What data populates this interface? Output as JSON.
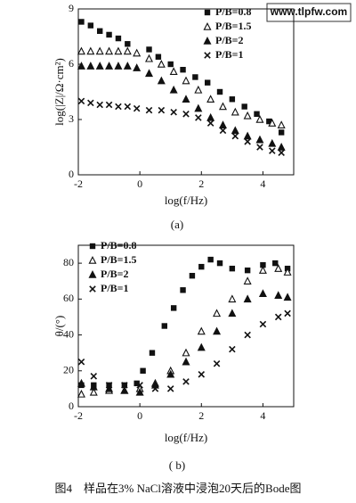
{
  "watermark": "www.tlpfw.com",
  "caption": "图4　样品在3% NaCl溶液中浸泡20天后的Bode图",
  "chart_data": [
    {
      "type": "scatter",
      "subcaption": "(a)",
      "x_label": "log(f/Hz)",
      "y_label": "log(|Z|/Ω·cm²)",
      "xlim": [
        -2,
        5
      ],
      "xticks": [
        -2,
        0,
        2,
        4
      ],
      "ylim": [
        0,
        9
      ],
      "yticks": [
        0,
        3,
        6,
        9
      ],
      "legend": "upper right",
      "series": [
        {
          "name": "P/B=0.8",
          "color": "#111111",
          "marker": "square",
          "x": [
            -1.9,
            -1.6,
            -1.3,
            -1.0,
            -0.7,
            -0.4,
            0.3,
            0.6,
            1.0,
            1.4,
            1.8,
            2.2,
            2.6,
            3.0,
            3.4,
            3.8,
            4.2,
            4.6
          ],
          "values": [
            8.3,
            8.1,
            7.8,
            7.6,
            7.4,
            7.1,
            6.8,
            6.4,
            6.0,
            5.7,
            5.3,
            5.0,
            4.5,
            4.1,
            3.7,
            3.3,
            2.9,
            2.3
          ]
        },
        {
          "name": "P/B=1.5",
          "color": "#111111",
          "marker": "triangle-open",
          "x": [
            -1.9,
            -1.6,
            -1.3,
            -1.0,
            -0.7,
            -0.4,
            -0.1,
            0.3,
            0.7,
            1.1,
            1.5,
            1.9,
            2.3,
            2.7,
            3.1,
            3.5,
            3.9,
            4.3,
            4.6
          ],
          "values": [
            6.7,
            6.7,
            6.7,
            6.7,
            6.7,
            6.7,
            6.6,
            6.3,
            6.0,
            5.6,
            5.1,
            4.6,
            4.1,
            3.7,
            3.4,
            3.2,
            3.0,
            2.8,
            2.7
          ]
        },
        {
          "name": "P/B=2",
          "color": "#111111",
          "marker": "triangle",
          "x": [
            -1.9,
            -1.6,
            -1.3,
            -1.0,
            -0.7,
            -0.4,
            -0.1,
            0.3,
            0.7,
            1.1,
            1.5,
            1.9,
            2.3,
            2.7,
            3.1,
            3.5,
            3.9,
            4.3,
            4.6
          ],
          "values": [
            5.9,
            5.9,
            5.9,
            5.9,
            5.9,
            5.9,
            5.8,
            5.5,
            5.1,
            4.6,
            4.1,
            3.6,
            3.1,
            2.7,
            2.4,
            2.1,
            1.9,
            1.7,
            1.5
          ]
        },
        {
          "name": "P/B=1",
          "color": "#111111",
          "marker": "cross",
          "x": [
            -1.9,
            -1.6,
            -1.3,
            -1.0,
            -0.7,
            -0.4,
            -0.1,
            0.3,
            0.7,
            1.1,
            1.5,
            1.9,
            2.3,
            2.7,
            3.1,
            3.5,
            3.9,
            4.3,
            4.6
          ],
          "values": [
            4.0,
            3.9,
            3.8,
            3.8,
            3.7,
            3.7,
            3.6,
            3.5,
            3.5,
            3.4,
            3.3,
            3.1,
            2.8,
            2.4,
            2.1,
            1.8,
            1.5,
            1.3,
            1.2
          ]
        }
      ]
    },
    {
      "type": "scatter",
      "subcaption": "( b)",
      "x_label": "log(f/Hz)",
      "y_label": "θ/(°)",
      "xlim": [
        -2,
        5
      ],
      "xticks": [
        -2,
        0,
        2,
        4
      ],
      "ylim": [
        0,
        90
      ],
      "yticks": [
        0,
        20,
        40,
        60,
        80
      ],
      "legend": "upper left",
      "series": [
        {
          "name": "P/B=0.8",
          "color": "#111111",
          "marker": "square",
          "x": [
            -1.9,
            -1.5,
            -1.0,
            -0.5,
            -0.1,
            0.1,
            0.4,
            0.8,
            1.1,
            1.4,
            1.7,
            2.0,
            2.3,
            2.6,
            3.0,
            3.5,
            4.0,
            4.4,
            4.8
          ],
          "values": [
            12,
            12,
            12,
            12,
            13,
            20,
            30,
            45,
            55,
            65,
            73,
            78,
            82,
            80,
            77,
            76,
            79,
            80,
            77
          ]
        },
        {
          "name": "P/B=1.5",
          "color": "#111111",
          "marker": "triangle-open",
          "x": [
            -1.9,
            -1.5,
            -1.0,
            -0.5,
            0.0,
            0.5,
            1.0,
            1.5,
            2.0,
            2.5,
            3.0,
            3.5,
            4.0,
            4.5,
            4.8
          ],
          "values": [
            7,
            8,
            9,
            9,
            10,
            13,
            20,
            30,
            42,
            52,
            60,
            70,
            76,
            77,
            75
          ]
        },
        {
          "name": "P/B=2",
          "color": "#111111",
          "marker": "triangle",
          "x": [
            -1.9,
            -1.5,
            -1.0,
            -0.5,
            0.0,
            0.5,
            1.0,
            1.5,
            2.0,
            2.5,
            3.0,
            3.5,
            4.0,
            4.5,
            4.8
          ],
          "values": [
            13,
            11,
            10,
            9,
            8,
            12,
            18,
            25,
            33,
            42,
            52,
            60,
            63,
            62,
            61
          ]
        },
        {
          "name": "P/B=1",
          "color": "#111111",
          "marker": "cross",
          "x": [
            -1.9,
            -1.5,
            -1.0,
            -0.5,
            0.0,
            0.5,
            1.0,
            1.5,
            2.0,
            2.5,
            3.0,
            3.5,
            4.0,
            4.5,
            4.8
          ],
          "values": [
            25,
            17,
            12,
            12,
            12,
            10,
            10,
            14,
            18,
            24,
            32,
            40,
            46,
            50,
            52
          ]
        }
      ]
    }
  ]
}
